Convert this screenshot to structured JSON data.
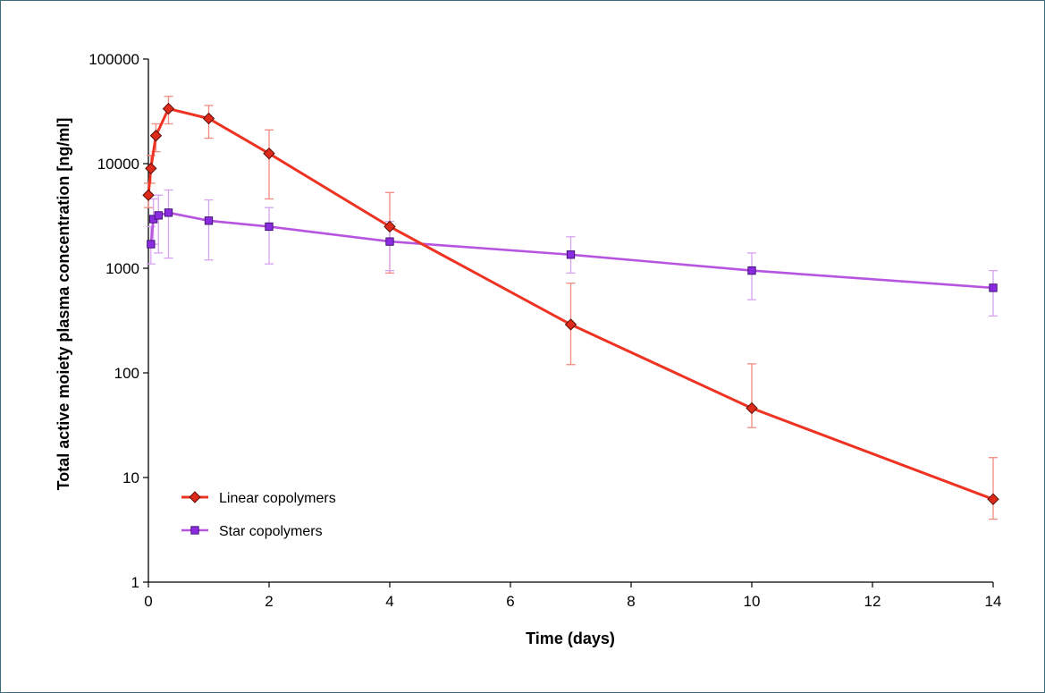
{
  "chart_data": {
    "type": "line",
    "title": "",
    "xlabel": "Time (days)",
    "ylabel": "Total active moiety  plasma concentration [ng/ml]",
    "xlim": [
      0,
      14
    ],
    "ylim": [
      1,
      100000
    ],
    "yscale": "log",
    "grid": false,
    "legend_position": "bottom-left",
    "x_ticks": [
      "0",
      "2",
      "4",
      "6",
      "8",
      "10",
      "12",
      "14"
    ],
    "y_ticks": [
      "1",
      "10",
      "100",
      "1000",
      "10000",
      "100000"
    ],
    "series": [
      {
        "name": "Linear copolymers",
        "color": "#ee3322",
        "marker": "diamond",
        "x": [
          0,
          0.042,
          0.125,
          0.333,
          1,
          2,
          4,
          7,
          10,
          14
        ],
        "y": [
          5000,
          9000,
          18500,
          33500,
          27000,
          12500,
          2500,
          290,
          46,
          6.2
        ],
        "err_upper": [
          6500,
          12000,
          24000,
          44000,
          36000,
          21000,
          5300,
          720,
          122,
          15.5
        ],
        "err_lower": [
          3800,
          6500,
          13000,
          24000,
          17500,
          4600,
          900,
          120,
          30,
          4
        ]
      },
      {
        "name": "Star copolymers",
        "color": "#b855e0",
        "marker": "square",
        "x": [
          0.042,
          0.083,
          0.167,
          0.333,
          1,
          2,
          4,
          7,
          10,
          14
        ],
        "y": [
          1700,
          2950,
          3200,
          3400,
          2850,
          2500,
          1800,
          1350,
          950,
          650
        ],
        "err_upper": [
          2500,
          4600,
          5000,
          5600,
          4500,
          3800,
          2800,
          2000,
          1400,
          950
        ],
        "err_lower": [
          1100,
          1700,
          1400,
          1250,
          1200,
          1100,
          950,
          900,
          500,
          350
        ]
      }
    ]
  }
}
